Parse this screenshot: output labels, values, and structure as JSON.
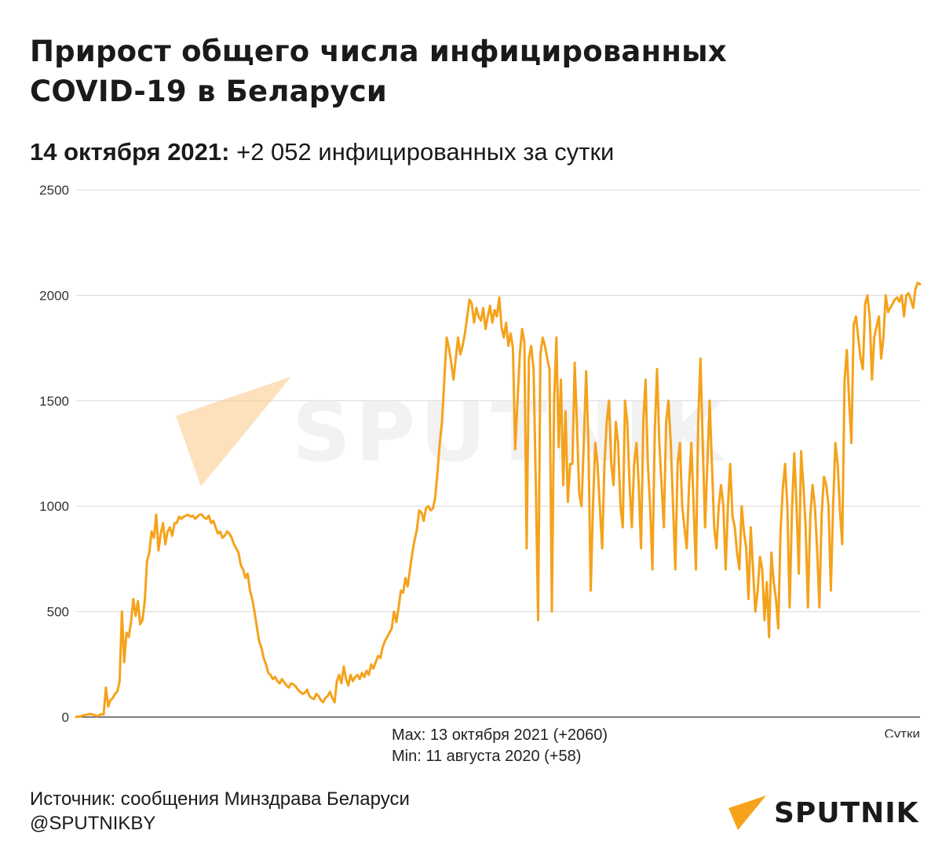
{
  "title": "Прирост общего числа инфицированных COVID-19 в Беларуси",
  "subtitle": {
    "date": "14 октября 2021:",
    "text": " +2 052 инфицированных за сутки"
  },
  "notes": {
    "max": "Max: 13 октября 2021 (+2060)",
    "min": "Min: 11 августа 2020 (+58)"
  },
  "footer": {
    "source": "Источник: сообщения Минздрава Беларуси",
    "handle": "@SPUTNIKBY"
  },
  "logo": {
    "text": "SPUTNIK",
    "color": "#f7a21b"
  },
  "watermark": {
    "text": "SPUTNIK"
  },
  "colors": {
    "line": "#f5a21b",
    "grid": "#d8d8d8"
  },
  "chart_data": {
    "type": "line",
    "title": "Прирост общего числа инфицированных COVID-19 в Беларуси",
    "xlabel": "Сутки",
    "ylabel": "",
    "ylim": [
      0,
      2500
    ],
    "yticks": [
      0,
      500,
      1000,
      1500,
      2000,
      2500
    ],
    "grid": true,
    "legend": "none",
    "series": [
      {
        "name": "",
        "values": [
          0,
          3,
          2,
          8,
          10,
          12,
          15,
          13,
          10,
          5,
          8,
          14,
          12,
          140,
          50,
          80,
          90,
          110,
          120,
          170,
          500,
          260,
          400,
          380,
          450,
          560,
          480,
          550,
          440,
          460,
          550,
          740,
          780,
          880,
          850,
          960,
          790,
          870,
          920,
          820,
          880,
          900,
          860,
          920,
          920,
          950,
          940,
          950,
          955,
          960,
          950,
          955,
          940,
          950,
          960,
          960,
          945,
          940,
          955,
          920,
          930,
          900,
          870,
          880,
          850,
          860,
          880,
          870,
          850,
          820,
          800,
          780,
          720,
          700,
          660,
          680,
          600,
          560,
          500,
          430,
          360,
          330,
          280,
          250,
          210,
          200,
          180,
          190,
          170,
          160,
          180,
          165,
          150,
          140,
          160,
          155,
          145,
          130,
          120,
          110,
          115,
          130,
          100,
          90,
          85,
          110,
          100,
          80,
          70,
          90,
          100,
          120,
          90,
          70,
          170,
          200,
          160,
          240,
          180,
          150,
          200,
          170,
          190,
          200,
          180,
          210,
          190,
          220,
          200,
          250,
          230,
          260,
          290,
          280,
          330,
          360,
          380,
          400,
          420,
          500,
          450,
          520,
          600,
          590,
          660,
          620,
          700,
          780,
          840,
          890,
          980,
          970,
          930,
          990,
          1000,
          980,
          990,
          1040,
          1160,
          1300,
          1400,
          1600,
          1800,
          1750,
          1680,
          1600,
          1700,
          1800,
          1720,
          1760,
          1820,
          1900,
          1980,
          1960,
          1870,
          1940,
          1900,
          1880,
          1940,
          1840,
          1900,
          1950,
          1870,
          1930,
          1900,
          1990,
          1850,
          1800,
          1870,
          1760,
          1820,
          1750,
          1270,
          1500,
          1720,
          1840,
          1780,
          800,
          1700,
          1760,
          1650,
          1100,
          460,
          1720,
          1800,
          1760,
          1700,
          1650,
          500,
          1500,
          1800,
          1280,
          1600,
          1100,
          1450,
          1020,
          1200,
          1200,
          1680,
          1380,
          1060,
          1000,
          1300,
          1640,
          1300,
          600,
          1000,
          1300,
          1200,
          1000,
          800,
          1200,
          1400,
          1500,
          1200,
          1100,
          1400,
          1300,
          1000,
          900,
          1500,
          1400,
          1100,
          900,
          1200,
          1300,
          1100,
          800,
          1400,
          1600,
          1200,
          1000,
          700,
          1350,
          1650,
          1300,
          1100,
          900,
          1400,
          1500,
          1300,
          1000,
          700,
          1200,
          1300,
          1000,
          900,
          800,
          1100,
          1300,
          1000,
          700,
          1400,
          1700,
          1300,
          900,
          1200,
          1500,
          1200,
          900,
          800,
          1000,
          1100,
          1000,
          700,
          1000,
          1200,
          950,
          900,
          780,
          700,
          1000,
          880,
          800,
          560,
          900,
          700,
          500,
          600,
          760,
          700,
          460,
          640,
          380,
          780,
          640,
          560,
          420,
          880,
          1080,
          1200,
          1000,
          520,
          980,
          1250,
          1000,
          680,
          1260,
          1100,
          900,
          520,
          950,
          1100,
          1000,
          800,
          520,
          960,
          1140,
          1100,
          1000,
          600,
          1000,
          1300,
          1200,
          980,
          820,
          1600,
          1740,
          1500,
          1300,
          1860,
          1900,
          1800,
          1700,
          1650,
          1960,
          2000,
          1900,
          1600,
          1800,
          1850,
          1900,
          1700,
          1800,
          2000,
          1920,
          1940,
          1960,
          1980,
          1990,
          1970,
          2000,
          1900,
          2000,
          2010,
          1980,
          1940,
          2030,
          2060,
          2052
        ]
      }
    ]
  }
}
